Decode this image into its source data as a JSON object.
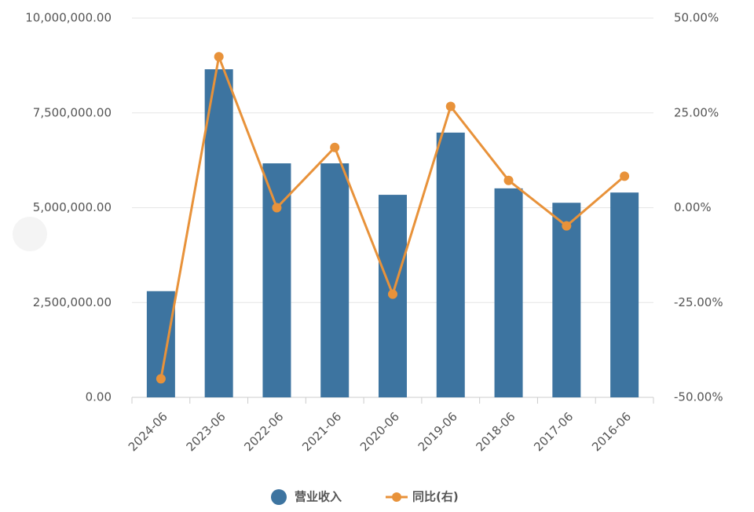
{
  "chart_data": {
    "type": "bar-line",
    "categories": [
      "2024-06",
      "2023-06",
      "2022-06",
      "2021-06",
      "2020-06",
      "2019-06",
      "2018-06",
      "2017-06",
      "2016-06"
    ],
    "series": [
      {
        "name": "营业收入",
        "color": "#3d74a0",
        "type": "bar",
        "values": [
          2800000,
          8650000,
          6170000,
          6170000,
          5340000,
          6980000,
          5510000,
          5130000,
          5400000
        ]
      },
      {
        "name": "同比(右)",
        "color": "#e8923a",
        "type": "line",
        "axis": "y2",
        "values": [
          -45.1,
          39.8,
          0,
          15.9,
          -22.8,
          26.7,
          7.2,
          -4.8,
          8.3
        ]
      }
    ],
    "ylim": [
      0,
      10000000
    ],
    "yticks": [
      {
        "value": 0,
        "label": "0.00"
      },
      {
        "value": 2500000,
        "label": "2,500,000.00"
      },
      {
        "value": 5000000,
        "label": "5,000,000.00"
      },
      {
        "value": 7500000,
        "label": "7,500,000.00"
      },
      {
        "value": 10000000,
        "label": "10,000,000.00"
      }
    ],
    "y2lim": [
      -50,
      50
    ],
    "y2ticks": [
      {
        "value": -50,
        "label": "-50.00%"
      },
      {
        "value": -25,
        "label": "-25.00%"
      },
      {
        "value": 0,
        "label": "0.00%"
      },
      {
        "value": 25,
        "label": "25.00%"
      },
      {
        "value": 50,
        "label": "50.00%"
      }
    ],
    "grid": true
  }
}
